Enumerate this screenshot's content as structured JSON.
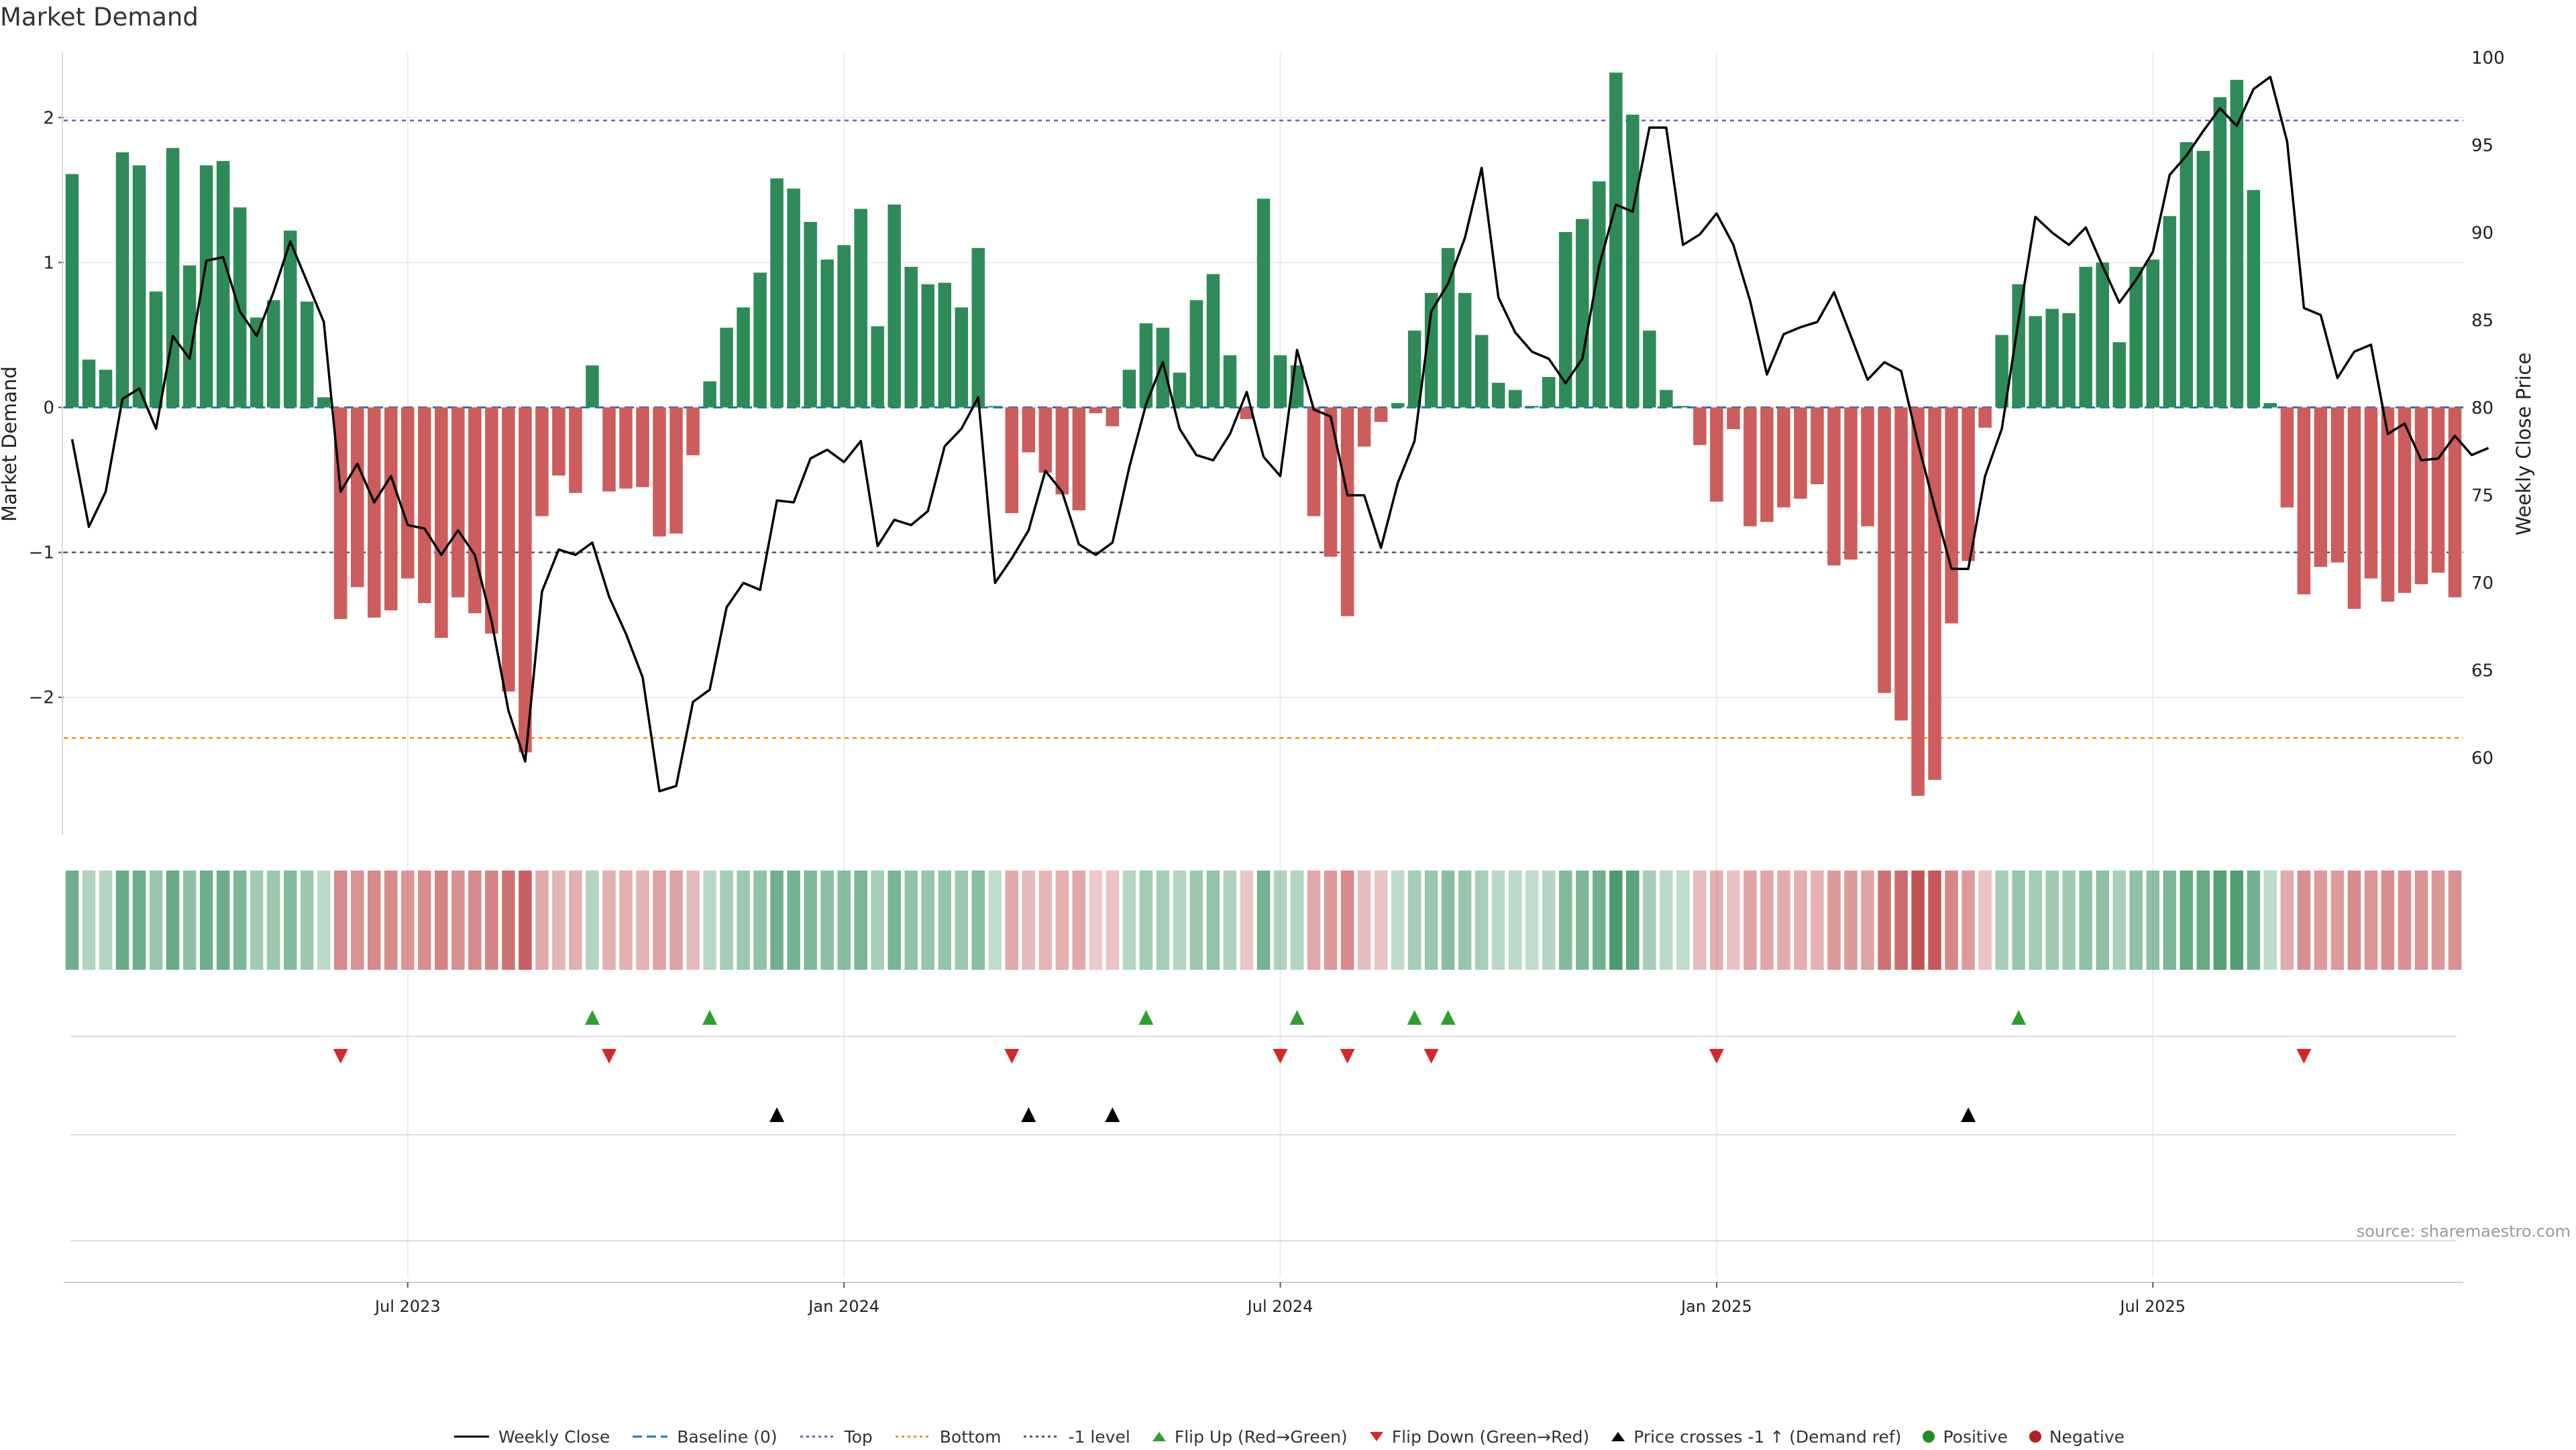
{
  "title": "Market Demand",
  "source": "source: sharemaestro.com",
  "colors": {
    "positive": "#2e8b57",
    "negative": "#cd5c5c",
    "price": "#000000",
    "baseline": "#1f77b4",
    "top": "#6a5acd",
    "bottom": "#ff8c00",
    "minus1": "#555555",
    "flip_up": "#2ca02c",
    "flip_down": "#d62728",
    "cross": "#000000"
  },
  "chart_data": {
    "type": "bar",
    "title": "Market Demand",
    "ylabel": "Market Demand",
    "y2label": "Weekly Close Price",
    "ylim": [
      -2.95,
      2.45
    ],
    "y2lim": [
      55.6,
      100.3
    ],
    "yticks": [
      2,
      1,
      0,
      -1,
      -2
    ],
    "ytick_labels": [
      "2",
      "1",
      "0",
      "−1",
      "−2"
    ],
    "y2ticks": [
      100,
      95,
      90,
      85,
      80,
      75,
      70,
      65,
      60
    ],
    "xtick_labels": [
      "Jul 2023",
      "Jan 2024",
      "Jul 2024",
      "Jan 2025",
      "Jul 2025"
    ],
    "xtick_index": [
      20,
      46,
      72,
      98,
      124
    ],
    "reference_lines": {
      "top": 1.98,
      "bottom": -2.28,
      "minus1": -1.0,
      "baseline": 0
    },
    "demand": [
      1.61,
      0.33,
      0.26,
      1.76,
      1.67,
      0.8,
      1.79,
      0.98,
      1.67,
      1.7,
      1.38,
      0.62,
      0.74,
      1.22,
      0.73,
      0.07,
      -1.46,
      -1.24,
      -1.45,
      -1.4,
      -1.18,
      -1.35,
      -1.59,
      -1.31,
      -1.42,
      -1.56,
      -1.96,
      -2.38,
      -0.75,
      -0.47,
      -0.59,
      0.29,
      -0.58,
      -0.56,
      -0.55,
      -0.89,
      -0.87,
      -0.33,
      0.18,
      0.55,
      0.69,
      0.93,
      1.58,
      1.51,
      1.28,
      1.02,
      1.12,
      1.37,
      0.56,
      1.4,
      0.97,
      0.85,
      0.86,
      0.69,
      1.1,
      0.01,
      -0.73,
      -0.31,
      -0.45,
      -0.6,
      -0.71,
      -0.04,
      -0.13,
      0.26,
      0.58,
      0.55,
      0.24,
      0.74,
      0.92,
      0.36,
      -0.08,
      1.44,
      0.36,
      0.29,
      -0.75,
      -1.03,
      -1.44,
      -0.27,
      -0.1,
      0.03,
      0.53,
      0.79,
      1.1,
      0.79,
      0.5,
      0.17,
      0.12,
      0.01,
      0.21,
      1.21,
      1.3,
      1.56,
      2.31,
      2.02,
      0.53,
      0.12,
      0.01,
      -0.26,
      -0.65,
      -0.15,
      -0.82,
      -0.79,
      -0.69,
      -0.63,
      -0.53,
      -1.09,
      -1.05,
      -0.82,
      -1.97,
      -2.16,
      -2.68,
      -2.57,
      -1.49,
      -1.06,
      -0.14,
      0.5,
      0.85,
      0.63,
      0.68,
      0.65,
      0.97,
      1.0,
      0.45,
      0.97,
      1.02,
      1.32,
      1.83,
      1.77,
      2.14,
      2.26,
      1.5,
      0.03,
      -0.69,
      -1.29,
      -1.1,
      -1.07,
      -1.39,
      -1.18,
      -1.34,
      -1.28,
      -1.22,
      -1.14,
      -1.31
    ],
    "price": [
      78.2,
      73.2,
      75.2,
      80.5,
      81.1,
      78.8,
      84.1,
      82.8,
      88.4,
      88.6,
      85.5,
      84.1,
      86.6,
      89.5,
      87.2,
      84.9,
      75.2,
      76.8,
      74.6,
      76.1,
      73.3,
      73.1,
      71.6,
      73.0,
      71.6,
      67.8,
      62.7,
      59.8,
      69.5,
      71.9,
      71.6,
      72.3,
      69.2,
      67.1,
      64.6,
      58.1,
      58.4,
      63.2,
      63.9,
      68.6,
      70.0,
      69.6,
      74.7,
      74.6,
      77.1,
      77.6,
      76.9,
      78.1,
      72.1,
      73.6,
      73.3,
      74.1,
      77.8,
      78.8,
      80.6,
      70.0,
      71.4,
      73.0,
      76.4,
      75.2,
      72.2,
      71.6,
      72.3,
      76.6,
      80.2,
      82.6,
      78.8,
      77.3,
      77.0,
      78.5,
      80.9,
      77.2,
      76.1,
      83.3,
      79.9,
      79.5,
      75.0,
      75.0,
      72.0,
      75.7,
      78.1,
      85.5,
      87.1,
      89.7,
      93.7,
      86.3,
      84.3,
      83.2,
      82.8,
      81.4,
      82.8,
      88.1,
      91.6,
      91.2,
      96.0,
      96.0,
      89.3,
      89.9,
      91.1,
      89.3,
      86.1,
      81.9,
      84.2,
      84.6,
      84.9,
      86.6,
      84.1,
      81.6,
      82.6,
      82.1,
      78.0,
      74.3,
      70.8,
      70.8,
      76.1,
      78.8,
      85.0,
      90.9,
      90.0,
      89.3,
      90.3,
      88.1,
      86.0,
      87.3,
      88.9,
      93.3,
      94.4,
      95.8,
      97.1,
      96.1,
      98.2,
      98.9,
      95.2,
      85.7,
      85.3,
      81.7,
      83.2,
      83.6,
      78.5,
      79.1,
      77.0,
      77.1,
      78.4,
      77.3,
      77.7
    ],
    "flip_up_index": [
      31,
      38,
      64,
      73,
      80,
      82,
      116
    ],
    "flip_down_index": [
      16,
      32,
      56,
      72,
      76,
      81,
      98,
      133
    ],
    "cross_up_index": [
      42,
      57,
      62,
      113
    ],
    "legend": [
      "Weekly Close",
      "Baseline (0)",
      "Top",
      "Bottom",
      "-1 level",
      "Flip Up (Red→Green)",
      "Flip Down (Green→Red)",
      "Price crosses -1 ↑ (Demand ref)",
      "Positive",
      "Negative"
    ]
  }
}
